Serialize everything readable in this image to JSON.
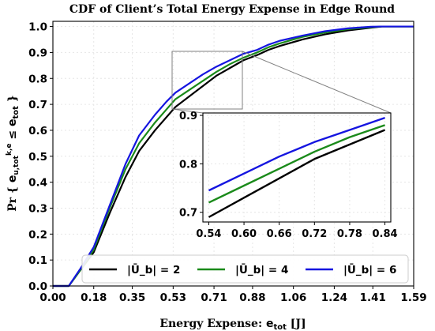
{
  "chart_data": {
    "type": "line",
    "title": "CDF of Client’s Total Energy Expense in Edge Round",
    "xlabel": "Energy Expense: e_tot [J]",
    "ylabel": "Pr { e_u,tot^k,e ≤ e_tot }",
    "xlim": [
      0.0,
      1.59
    ],
    "ylim": [
      0.0,
      1.02
    ],
    "xticks": [
      "0.00",
      "0.18",
      "0.35",
      "0.53",
      "0.71",
      "0.88",
      "1.06",
      "1.24",
      "1.41",
      "1.59"
    ],
    "yticks": [
      "0.0",
      "0.1",
      "0.2",
      "0.3",
      "0.4",
      "0.5",
      "0.6",
      "0.7",
      "0.8",
      "0.9",
      "1.0"
    ],
    "grid": true,
    "legend_position": "bottom",
    "series": [
      {
        "name": "|Ū_b| = 2",
        "color": "#000000",
        "x": [
          0.0,
          0.07,
          0.12,
          0.18,
          0.25,
          0.32,
          0.38,
          0.45,
          0.5,
          0.54,
          0.6,
          0.66,
          0.72,
          0.78,
          0.84,
          0.9,
          0.95,
          1.0,
          1.1,
          1.2,
          1.3,
          1.4,
          1.45,
          1.5,
          1.59
        ],
        "y": [
          0.0,
          0.0,
          0.06,
          0.13,
          0.28,
          0.42,
          0.52,
          0.6,
          0.65,
          0.69,
          0.73,
          0.77,
          0.81,
          0.84,
          0.87,
          0.89,
          0.91,
          0.925,
          0.95,
          0.97,
          0.985,
          0.995,
          1.0,
          1.0,
          1.0
        ]
      },
      {
        "name": "|Ū_b| = 4",
        "color": "#1a8a1a",
        "x": [
          0.0,
          0.07,
          0.12,
          0.18,
          0.25,
          0.32,
          0.38,
          0.45,
          0.5,
          0.54,
          0.6,
          0.66,
          0.72,
          0.78,
          0.84,
          0.9,
          0.95,
          1.0,
          1.1,
          1.2,
          1.3,
          1.4,
          1.45,
          1.5,
          1.59
        ],
        "y": [
          0.0,
          0.0,
          0.06,
          0.14,
          0.3,
          0.45,
          0.55,
          0.63,
          0.68,
          0.72,
          0.755,
          0.79,
          0.825,
          0.855,
          0.88,
          0.9,
          0.92,
          0.935,
          0.96,
          0.977,
          0.99,
          0.997,
          1.0,
          1.0,
          1.0
        ]
      },
      {
        "name": "|Ū_b| = 6",
        "color": "#1515e0",
        "x": [
          0.0,
          0.07,
          0.12,
          0.18,
          0.25,
          0.32,
          0.38,
          0.45,
          0.5,
          0.54,
          0.6,
          0.66,
          0.72,
          0.78,
          0.84,
          0.9,
          0.95,
          1.0,
          1.1,
          1.2,
          1.3,
          1.4,
          1.45,
          1.5,
          1.59
        ],
        "y": [
          0.0,
          0.0,
          0.065,
          0.15,
          0.31,
          0.47,
          0.58,
          0.66,
          0.71,
          0.745,
          0.78,
          0.815,
          0.845,
          0.87,
          0.895,
          0.91,
          0.93,
          0.945,
          0.965,
          0.982,
          0.993,
          0.999,
          1.0,
          1.0,
          1.0
        ]
      }
    ],
    "inset": {
      "xlim": [
        0.53,
        0.85
      ],
      "ylim": [
        0.68,
        0.905
      ],
      "xticks": [
        "0.54",
        "0.60",
        "0.66",
        "0.72",
        "0.78",
        "0.84"
      ],
      "yticks": [
        "0.7",
        "0.8",
        "0.9"
      ]
    }
  }
}
